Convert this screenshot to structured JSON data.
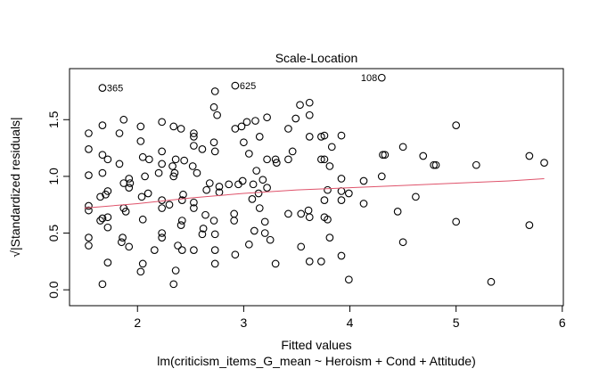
{
  "chart_data": {
    "type": "scatter",
    "title": "Scale-Location",
    "xlabel": "Fitted values",
    "subtitle": "lm(criticism_items_G_mean ~ Heroism + Cond + Attitude)",
    "ylabel": "√|Standardized residuals|",
    "xlim": [
      1.36,
      6.01
    ],
    "ylim": [
      -0.14,
      1.95
    ],
    "xticks": [
      2,
      3,
      4,
      5,
      6
    ],
    "xtick_labels": [
      "2",
      "3",
      "4",
      "5",
      "6"
    ],
    "yticks": [
      0.0,
      0.5,
      1.0,
      1.5
    ],
    "ytick_labels": [
      "0.0",
      "0.5",
      "1.0",
      "1.5"
    ],
    "grid": false,
    "point_color": "#000000",
    "smooth_color": "#DF536B",
    "labeled_points": [
      {
        "label": "365",
        "x": 1.67,
        "y": 1.78,
        "side": "right"
      },
      {
        "label": "625",
        "x": 2.92,
        "y": 1.8,
        "side": "right"
      },
      {
        "label": "108",
        "x": 4.3,
        "y": 1.87,
        "side": "left"
      }
    ],
    "points": [
      [
        4.3,
        1.87
      ],
      [
        1.67,
        1.78
      ],
      [
        2.92,
        1.8
      ],
      [
        3.62,
        1.65
      ],
      [
        3.53,
        1.63
      ],
      [
        3.62,
        1.54
      ],
      [
        3.49,
        1.51
      ],
      [
        3.22,
        1.52
      ],
      [
        3.11,
        1.49
      ],
      [
        3.42,
        1.42
      ],
      [
        5.0,
        1.45
      ],
      [
        3.62,
        1.35
      ],
      [
        3.73,
        1.35
      ],
      [
        3.76,
        1.36
      ],
      [
        3.92,
        1.36
      ],
      [
        4.5,
        1.26
      ],
      [
        3.83,
        1.26
      ],
      [
        3.46,
        1.22
      ],
      [
        4.31,
        1.19
      ],
      [
        4.33,
        1.19
      ],
      [
        4.69,
        1.18
      ],
      [
        5.69,
        1.18
      ],
      [
        5.83,
        1.12
      ],
      [
        5.19,
        1.1
      ],
      [
        4.81,
        1.1
      ],
      [
        4.79,
        1.1
      ],
      [
        3.42,
        1.15
      ],
      [
        3.3,
        1.15
      ],
      [
        3.73,
        1.15
      ],
      [
        3.76,
        1.15
      ],
      [
        3.81,
        1.09
      ],
      [
        3.22,
        1.15
      ],
      [
        3.31,
        1.12
      ],
      [
        4.3,
        1.0
      ],
      [
        4.13,
        0.96
      ],
      [
        3.92,
        0.98
      ],
      [
        3.92,
        0.87
      ],
      [
        3.99,
        0.85
      ],
      [
        3.79,
        0.88
      ],
      [
        3.76,
        0.79
      ],
      [
        3.92,
        0.79
      ],
      [
        4.62,
        0.82
      ],
      [
        4.13,
        0.76
      ],
      [
        4.45,
        0.69
      ],
      [
        3.42,
        0.67
      ],
      [
        3.61,
        0.7
      ],
      [
        3.54,
        0.67
      ],
      [
        3.62,
        0.64
      ],
      [
        3.76,
        0.64
      ],
      [
        3.79,
        0.62
      ],
      [
        5.0,
        0.6
      ],
      [
        5.69,
        0.57
      ],
      [
        4.5,
        0.42
      ],
      [
        3.54,
        0.38
      ],
      [
        3.81,
        0.46
      ],
      [
        3.92,
        0.3
      ],
      [
        3.62,
        0.25
      ],
      [
        3.73,
        0.25
      ],
      [
        3.3,
        0.23
      ],
      [
        3.99,
        0.09
      ],
      [
        5.33,
        0.07
      ],
      [
        2.72,
        1.61
      ],
      [
        2.73,
        1.75
      ],
      [
        2.75,
        1.54
      ],
      [
        1.87,
        1.5
      ],
      [
        1.67,
        1.45
      ],
      [
        1.83,
        1.38
      ],
      [
        1.54,
        1.38
      ],
      [
        2.03,
        1.44
      ],
      [
        2.23,
        1.48
      ],
      [
        2.34,
        1.44
      ],
      [
        2.41,
        1.42
      ],
      [
        2.53,
        1.38
      ],
      [
        2.92,
        1.42
      ],
      [
        2.98,
        1.44
      ],
      [
        3.03,
        1.48
      ],
      [
        2.03,
        1.31
      ],
      [
        2.53,
        1.35
      ],
      [
        2.53,
        1.27
      ],
      [
        2.61,
        1.24
      ],
      [
        2.73,
        1.22
      ],
      [
        2.72,
        1.3
      ],
      [
        1.54,
        1.24
      ],
      [
        1.67,
        1.19
      ],
      [
        1.72,
        1.15
      ],
      [
        1.83,
        1.11
      ],
      [
        2.05,
        1.17
      ],
      [
        2.11,
        1.15
      ],
      [
        2.23,
        1.22
      ],
      [
        2.36,
        1.15
      ],
      [
        2.23,
        1.11
      ],
      [
        2.33,
        1.09
      ],
      [
        2.44,
        1.14
      ],
      [
        2.52,
        1.09
      ],
      [
        2.35,
        1.03
      ],
      [
        2.56,
        1.03
      ],
      [
        2.2,
        1.03
      ],
      [
        2.34,
        1.0
      ],
      [
        1.54,
        1.01
      ],
      [
        1.67,
        1.03
      ],
      [
        1.87,
        0.94
      ],
      [
        1.93,
        0.94
      ],
      [
        1.92,
        0.98
      ],
      [
        2.07,
        1.0
      ],
      [
        1.92,
        0.9
      ],
      [
        1.65,
        0.82
      ],
      [
        1.7,
        0.84
      ],
      [
        1.72,
        0.87
      ],
      [
        2.04,
        0.82
      ],
      [
        2.1,
        0.85
      ],
      [
        2.23,
        0.79
      ],
      [
        2.3,
        0.75
      ],
      [
        2.42,
        0.79
      ],
      [
        2.43,
        0.84
      ],
      [
        2.65,
        0.88
      ],
      [
        2.68,
        0.94
      ],
      [
        2.77,
        0.91
      ],
      [
        2.77,
        0.86
      ],
      [
        2.86,
        0.93
      ],
      [
        2.95,
        0.93
      ],
      [
        2.99,
        0.96
      ],
      [
        3.09,
        0.93
      ],
      [
        1.54,
        0.74
      ],
      [
        1.54,
        0.7
      ],
      [
        1.87,
        0.72
      ],
      [
        1.89,
        0.69
      ],
      [
        2.23,
        0.72
      ],
      [
        2.53,
        0.72
      ],
      [
        2.53,
        0.77
      ],
      [
        2.42,
        0.61
      ],
      [
        2.41,
        0.57
      ],
      [
        2.62,
        0.54
      ],
      [
        2.61,
        0.49
      ],
      [
        2.73,
        0.49
      ],
      [
        2.72,
        0.61
      ],
      [
        2.91,
        0.61
      ],
      [
        2.91,
        0.67
      ],
      [
        2.64,
        0.66
      ],
      [
        1.67,
        0.63
      ],
      [
        1.72,
        0.64
      ],
      [
        1.65,
        0.61
      ],
      [
        1.72,
        0.55
      ],
      [
        2.05,
        0.62
      ],
      [
        1.54,
        0.46
      ],
      [
        1.54,
        0.39
      ],
      [
        1.85,
        0.42
      ],
      [
        1.86,
        0.46
      ],
      [
        1.92,
        0.38
      ],
      [
        2.23,
        0.46
      ],
      [
        2.23,
        0.5
      ],
      [
        2.16,
        0.35
      ],
      [
        2.42,
        0.35
      ],
      [
        2.38,
        0.39
      ],
      [
        2.53,
        0.35
      ],
      [
        2.73,
        0.35
      ],
      [
        2.92,
        0.31
      ],
      [
        1.72,
        0.24
      ],
      [
        2.05,
        0.23
      ],
      [
        2.03,
        0.16
      ],
      [
        2.36,
        0.17
      ],
      [
        2.73,
        0.23
      ],
      [
        2.34,
        0.05
      ],
      [
        1.67,
        0.05
      ],
      [
        3.05,
        1.2
      ],
      [
        3.12,
        1.05
      ],
      [
        3.18,
        0.97
      ],
      [
        3.08,
        0.8
      ],
      [
        3.15,
        0.72
      ],
      [
        3.2,
        0.6
      ],
      [
        3.1,
        0.52
      ],
      [
        3.25,
        0.44
      ],
      [
        3.05,
        0.4
      ],
      [
        3.14,
        0.85
      ],
      [
        3.22,
        0.9
      ],
      [
        3.0,
        1.3
      ],
      [
        3.15,
        1.35
      ],
      [
        3.2,
        0.5
      ]
    ],
    "smooth": [
      [
        1.5,
        0.72
      ],
      [
        2.0,
        0.76
      ],
      [
        2.5,
        0.81
      ],
      [
        3.0,
        0.85
      ],
      [
        3.5,
        0.88
      ],
      [
        4.0,
        0.9
      ],
      [
        4.5,
        0.92
      ],
      [
        5.0,
        0.94
      ],
      [
        5.5,
        0.96
      ],
      [
        5.83,
        0.98
      ]
    ]
  }
}
